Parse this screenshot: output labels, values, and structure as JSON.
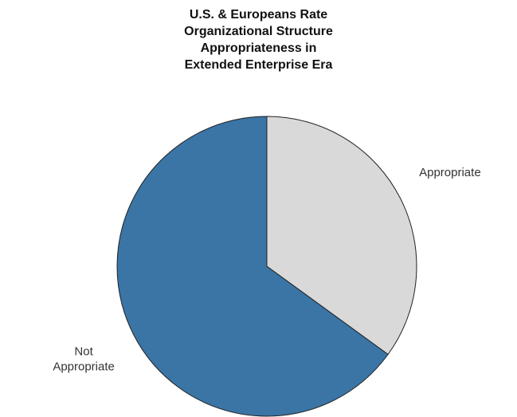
{
  "chart_data": {
    "type": "pie",
    "title_lines": [
      "U.S. & Europeans Rate",
      "Organizational Structure",
      "Appropriateness in",
      "Extended Enterprise Era"
    ],
    "slices": [
      {
        "label": [
          "Appropriate"
        ],
        "value": 35,
        "color": "#d9d9d9"
      },
      {
        "label": [
          "Not",
          "Appropriate"
        ],
        "value": 65,
        "color": "#3a75a6"
      }
    ],
    "start_angle_deg": 0,
    "direction": "clockwise",
    "stroke_color": "#222222"
  }
}
